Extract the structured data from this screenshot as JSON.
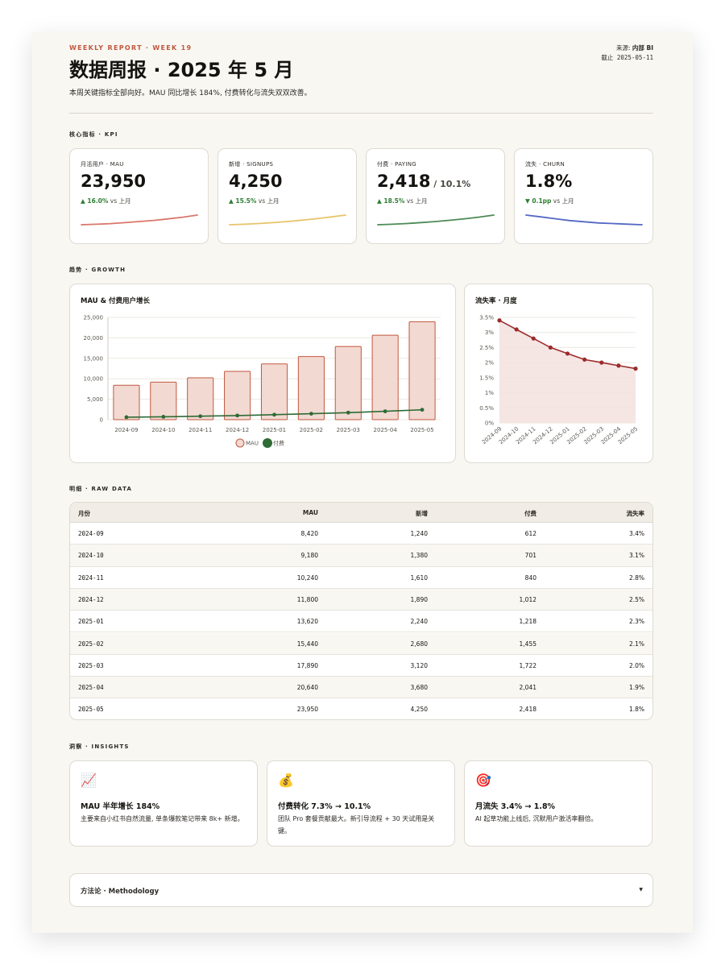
{
  "header": {
    "eyebrow": "WEEKLY REPORT · WEEK 19",
    "title": "数据周报 · 2025 年 5 月",
    "subtitle": "本周关键指标全部向好。MAU 同比增长 184%, 付费转化与流失双双改善。",
    "source_label": "来源: ",
    "source_value": "内部 BI",
    "asof": "截止 2025-05-11"
  },
  "sections": {
    "kpi": "核心指标 · KPI",
    "growth": "趋势 · GROWTH",
    "raw": "明细 · RAW DATA",
    "insights": "洞察 · INSIGHTS"
  },
  "kpis": [
    {
      "label": "月活用户 · MAU",
      "value": "23,950",
      "suffix": "",
      "delta": "▲ 16.0%",
      "vs": " vs 上月",
      "delta_color": "#2e7d32",
      "spark_color": "#d9776a",
      "spark": [
        8420,
        9180,
        10240,
        11800,
        13620,
        15440,
        17890,
        20640,
        23950
      ]
    },
    {
      "label": "新增 · SIGNUPS",
      "value": "4,250",
      "suffix": "",
      "delta": "▲ 15.5%",
      "vs": " vs 上月",
      "delta_color": "#2e7d32",
      "spark_color": "#e8c46a",
      "spark": [
        1240,
        1380,
        1610,
        1890,
        2240,
        2680,
        3120,
        3680,
        4250
      ]
    },
    {
      "label": "付费 · PAYING",
      "value": "2,418",
      "suffix": " / 10.1%",
      "delta": "▲ 18.5%",
      "vs": " vs 上月",
      "delta_color": "#2e7d32",
      "spark_color": "#4c8a55",
      "spark": [
        612,
        701,
        840,
        1012,
        1218,
        1455,
        1722,
        2041,
        2418
      ]
    },
    {
      "label": "流失 · CHURN",
      "value": "1.8%",
      "suffix": "",
      "delta": "▼ 0.1pp",
      "vs": " vs 上月",
      "delta_color": "#2e7d32",
      "spark_color": "#5468c4",
      "spark": [
        3.4,
        3.1,
        2.8,
        2.5,
        2.3,
        2.1,
        2.0,
        1.9,
        1.8
      ]
    }
  ],
  "chart_data": [
    {
      "type": "bar",
      "title": "MAU & 付费用户增长",
      "categories": [
        "2024-09",
        "2024-10",
        "2024-11",
        "2024-12",
        "2025-01",
        "2025-02",
        "2025-03",
        "2025-04",
        "2025-05"
      ],
      "series": [
        {
          "name": "MAU",
          "type": "bar",
          "color": "#c0583f",
          "fill": "#f2d9d2",
          "values": [
            8420,
            9180,
            10240,
            11800,
            13620,
            15440,
            17890,
            20640,
            23950
          ]
        },
        {
          "name": "付费",
          "type": "line",
          "color": "#2e6b35",
          "values": [
            612,
            701,
            840,
            1012,
            1218,
            1455,
            1722,
            2041,
            2418
          ]
        }
      ],
      "ylim": [
        0,
        25000
      ],
      "yticks": [
        "0",
        "5,000",
        "10,000",
        "15,000",
        "20,000",
        "25,000"
      ],
      "legend": "bottom",
      "grid": true
    },
    {
      "type": "area",
      "title": "流失率 · 月度",
      "categories": [
        "2024-09",
        "2024-10",
        "2024-11",
        "2024-12",
        "2025-01",
        "2025-02",
        "2025-03",
        "2025-04",
        "2025-05"
      ],
      "series": [
        {
          "values": [
            3.4,
            3.1,
            2.8,
            2.5,
            2.3,
            2.1,
            2.0,
            1.9,
            1.8
          ],
          "color": "#9b2c2c",
          "fill": "#f3e1de"
        }
      ],
      "ylim": [
        0,
        3.5
      ],
      "yticks": [
        "0%",
        "0.5%",
        "1%",
        "1.5%",
        "2%",
        "2.5%",
        "3%",
        "3.5%"
      ],
      "grid": true
    }
  ],
  "table": {
    "headers": [
      "月份",
      "MAU",
      "新增",
      "付费",
      "流失率"
    ],
    "rows": [
      [
        "2024-09",
        "8,420",
        "1,240",
        "612",
        "3.4%"
      ],
      [
        "2024-10",
        "9,180",
        "1,380",
        "701",
        "3.1%"
      ],
      [
        "2024-11",
        "10,240",
        "1,610",
        "840",
        "2.8%"
      ],
      [
        "2024-12",
        "11,800",
        "1,890",
        "1,012",
        "2.5%"
      ],
      [
        "2025-01",
        "13,620",
        "2,240",
        "1,218",
        "2.3%"
      ],
      [
        "2025-02",
        "15,440",
        "2,680",
        "1,455",
        "2.1%"
      ],
      [
        "2025-03",
        "17,890",
        "3,120",
        "1,722",
        "2.0%"
      ],
      [
        "2025-04",
        "20,640",
        "3,680",
        "2,041",
        "1.9%"
      ],
      [
        "2025-05",
        "23,950",
        "4,250",
        "2,418",
        "1.8%"
      ]
    ]
  },
  "insights": [
    {
      "icon": "📈",
      "icon_name": "chart-up-icon",
      "title": "MAU 半年增长 184%",
      "body": "主要来自小红书自然流量, 单条爆款笔记带来 8k+ 新增。"
    },
    {
      "icon": "💰",
      "icon_name": "money-bag-icon",
      "title": "付费转化 7.3% → 10.1%",
      "body": "团队 Pro 套餐贡献最大。新引导流程 + 30 天试用是关键。"
    },
    {
      "icon": "🎯",
      "icon_name": "target-icon",
      "title": "月流失 3.4% → 1.8%",
      "body": "AI 起草功能上线后, 沉默用户激活率翻倍。"
    }
  ],
  "methodology": {
    "label": "方法论 · Methodology",
    "chevron": "▼"
  }
}
